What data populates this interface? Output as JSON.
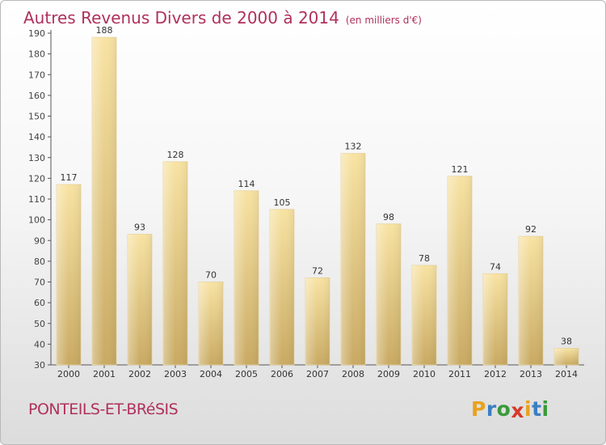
{
  "title": "Autres Revenus Divers de 2000 à 2014",
  "unit_note": "(en milliers d'€)",
  "place_name": "PONTEILS-ET-BRéSIS",
  "logo": {
    "letters": [
      "P",
      "r",
      "o",
      "x",
      "i",
      "t",
      "i"
    ],
    "colors": [
      "#e8a21f",
      "#3a7fc4",
      "#3a9a3a",
      "#d83a2a",
      "#e8a21f",
      "#3a7fc4",
      "#3a9a3a"
    ]
  },
  "chart_data": {
    "type": "bar",
    "categories": [
      "2000",
      "2001",
      "2002",
      "2003",
      "2004",
      "2005",
      "2006",
      "2007",
      "2008",
      "2009",
      "2010",
      "2011",
      "2012",
      "2013",
      "2014"
    ],
    "values": [
      117,
      188,
      93,
      128,
      70,
      114,
      105,
      72,
      132,
      98,
      78,
      121,
      74,
      92,
      38
    ],
    "ylim": [
      30,
      190
    ],
    "yticks": [
      30,
      40,
      50,
      60,
      70,
      80,
      90,
      100,
      110,
      120,
      130,
      140,
      150,
      160,
      170,
      180,
      190
    ],
    "bar_color": "#e9cf86",
    "grid": false
  }
}
